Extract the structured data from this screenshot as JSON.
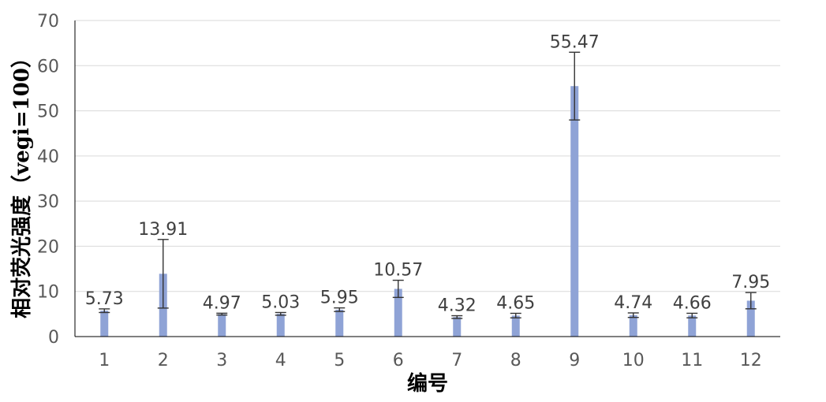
{
  "chart_data": {
    "type": "bar",
    "title": "",
    "xlabel": "编号",
    "ylabel": "相对荧光强度（vegi=100）",
    "ylim": [
      0,
      70
    ],
    "yticks": [
      0,
      10,
      20,
      30,
      40,
      50,
      60,
      70
    ],
    "grid": true,
    "categories": [
      "1",
      "2",
      "3",
      "4",
      "5",
      "6",
      "7",
      "8",
      "9",
      "10",
      "11",
      "12"
    ],
    "values": [
      5.73,
      13.91,
      4.97,
      5.03,
      5.95,
      10.57,
      4.32,
      4.65,
      55.47,
      4.74,
      4.66,
      7.95
    ],
    "value_labels": [
      "5.73",
      "13.91",
      "4.97",
      "5.03",
      "5.95",
      "10.57",
      "4.32",
      "4.65",
      "55.47",
      "4.74",
      "4.66",
      "7.95"
    ],
    "errors": [
      0.4,
      7.6,
      0.2,
      0.3,
      0.4,
      1.9,
      0.3,
      0.5,
      7.5,
      0.5,
      0.5,
      1.8
    ],
    "bar_color": "#8fa3d6"
  }
}
